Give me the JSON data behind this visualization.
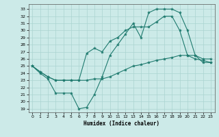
{
  "xlabel": "Humidex (Indice chaleur)",
  "background_color": "#cceae8",
  "grid_color": "#aad4d0",
  "line_color": "#1e7a6e",
  "xlim": [
    -0.5,
    23.5
  ],
  "ylim": [
    18.5,
    33.7
  ],
  "yticks": [
    19,
    20,
    21,
    22,
    23,
    24,
    25,
    26,
    27,
    28,
    29,
    30,
    31,
    32,
    33
  ],
  "xticks": [
    0,
    1,
    2,
    3,
    4,
    5,
    6,
    7,
    8,
    9,
    10,
    11,
    12,
    13,
    14,
    15,
    16,
    17,
    18,
    19,
    20,
    21,
    22,
    23
  ],
  "line1_x": [
    0,
    1,
    2,
    3,
    4,
    5,
    6,
    7,
    8,
    9,
    10,
    11,
    12,
    13,
    14,
    15,
    16,
    17,
    18,
    19,
    20,
    21,
    22,
    23
  ],
  "line1_y": [
    25.0,
    24.0,
    23.2,
    21.2,
    21.2,
    21.2,
    19.0,
    19.2,
    21.0,
    23.5,
    26.5,
    28.0,
    29.5,
    31.0,
    29.0,
    32.5,
    33.0,
    33.0,
    33.0,
    32.5,
    30.0,
    26.5,
    25.5,
    25.5
  ],
  "line2_x": [
    0,
    1,
    2,
    3,
    4,
    5,
    6,
    7,
    8,
    9,
    10,
    11,
    12,
    13,
    14,
    15,
    16,
    17,
    18,
    19,
    20,
    21,
    22,
    23
  ],
  "line2_y": [
    25.0,
    24.2,
    23.5,
    23.0,
    23.0,
    23.0,
    23.0,
    26.8,
    27.5,
    27.0,
    28.5,
    29.0,
    30.0,
    30.5,
    30.5,
    30.5,
    31.2,
    32.0,
    32.0,
    30.0,
    26.5,
    26.0,
    25.8,
    25.5
  ],
  "line3_x": [
    0,
    1,
    2,
    3,
    4,
    5,
    6,
    7,
    8,
    9,
    10,
    11,
    12,
    13,
    14,
    15,
    16,
    17,
    18,
    19,
    20,
    21,
    22,
    23
  ],
  "line3_y": [
    25.0,
    24.2,
    23.5,
    23.0,
    23.0,
    23.0,
    23.0,
    23.0,
    23.2,
    23.2,
    23.5,
    24.0,
    24.5,
    25.0,
    25.2,
    25.5,
    25.8,
    26.0,
    26.2,
    26.5,
    26.5,
    26.5,
    26.0,
    26.0
  ]
}
